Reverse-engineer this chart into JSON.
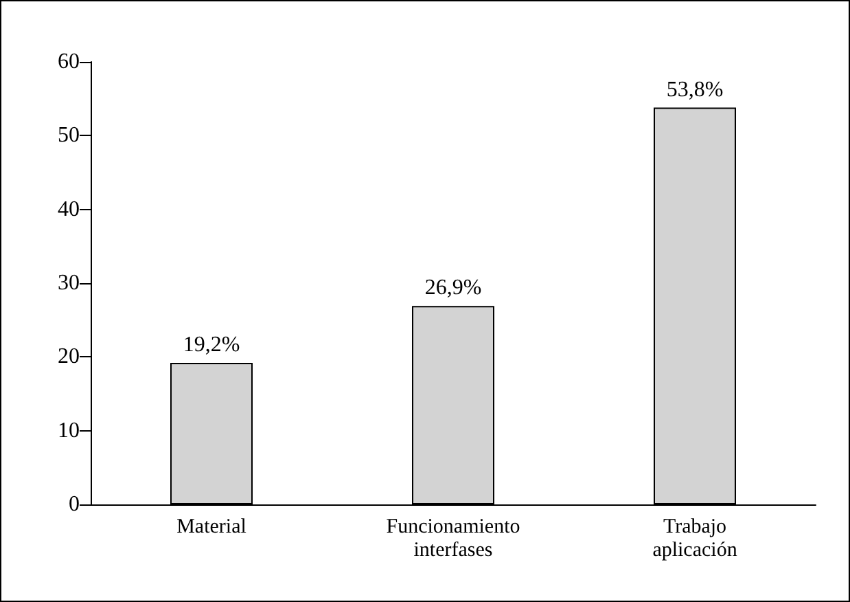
{
  "chart_data": {
    "type": "bar",
    "categories": [
      "Material",
      "Funcionamiento\ninterfases",
      "Trabajo\naplicación"
    ],
    "values": [
      19.2,
      26.9,
      53.8
    ],
    "color": "#d3d3d3",
    "value_labels": [
      "19,2%",
      "26,9%",
      "53,8%"
    ],
    "ylim": [
      0,
      60
    ],
    "yticks": [
      0,
      10,
      20,
      30,
      40,
      50,
      60
    ],
    "grid": false
  }
}
